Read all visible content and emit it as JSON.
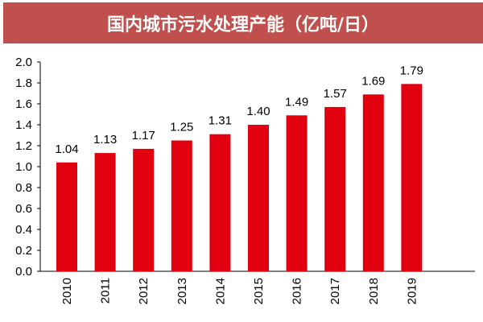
{
  "chart_data": {
    "type": "bar",
    "title": "国内城市污水处理产能（亿吨/日）",
    "categories": [
      "2010",
      "2011",
      "2012",
      "2013",
      "2014",
      "2015",
      "2016",
      "2017",
      "2018",
      "2019"
    ],
    "values": [
      1.04,
      1.13,
      1.17,
      1.25,
      1.31,
      1.4,
      1.49,
      1.57,
      1.69,
      1.79
    ],
    "data_labels": [
      "1.04",
      "1.13",
      "1.17",
      "1.25",
      "1.31",
      "1.40",
      "1.49",
      "1.57",
      "1.69",
      "1.79"
    ],
    "ylim": [
      0,
      2.0
    ],
    "yticks": [
      "0.0",
      "0.2",
      "0.4",
      "0.6",
      "0.8",
      "1.0",
      "1.2",
      "1.4",
      "1.6",
      "1.8",
      "2.0"
    ],
    "grid": false,
    "xlabel": "",
    "ylabel": "",
    "colors": {
      "bar": "#e0000f",
      "title_bg": "#c0504d"
    }
  }
}
